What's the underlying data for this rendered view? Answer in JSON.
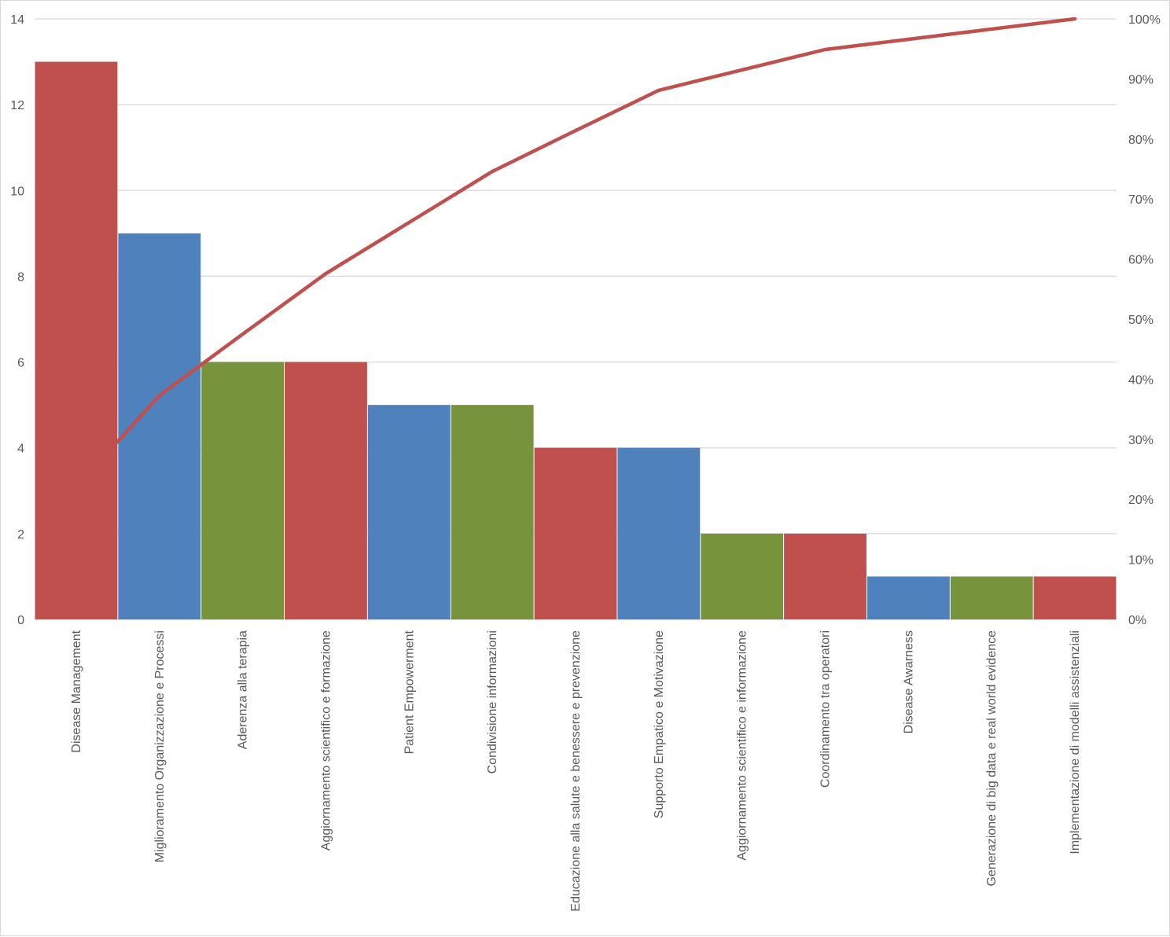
{
  "chart_data": {
    "type": "bar",
    "subtype": "pareto",
    "title": "",
    "xlabel": "",
    "ylabel": "",
    "ylim": [
      0,
      14
    ],
    "y_ticks": [
      "0",
      "2",
      "4",
      "6",
      "8",
      "10",
      "12",
      "14"
    ],
    "y2lim": [
      0,
      100
    ],
    "y2_ticks": [
      "0%",
      "10%",
      "20%",
      "30%",
      "40%",
      "50%",
      "60%",
      "70%",
      "80%",
      "90%",
      "100%"
    ],
    "grid": true,
    "legend": "none",
    "categories": [
      "Disease Management",
      "Miglioramento Organizzazione e Processi",
      "Aderenza alla terapia",
      "Aggiornamento scientifico e formazione",
      "Patient Empowerment",
      "Condivisione informazioni",
      "Educazione alla salute e benessere e prevenzione",
      "Supporto Empatico e Motivazione",
      "Aggiornamento scientifico e informazione",
      "Coordinamento tra operatori",
      "Disease Awarness",
      "Generazione di big data e real world evidence",
      "Implementazione di modelli assistenziali"
    ],
    "values": [
      13,
      9,
      6,
      6,
      5,
      5,
      4,
      4,
      2,
      2,
      1,
      1,
      1
    ],
    "bar_colors": [
      "#c0504d",
      "#4f81bd",
      "#77933c",
      "#c0504d",
      "#4f81bd",
      "#77933c",
      "#c0504d",
      "#4f81bd",
      "#77933c",
      "#c0504d",
      "#4f81bd",
      "#77933c",
      "#c0504d"
    ],
    "cumulative_percent": [
      22.0,
      37.3,
      47.5,
      57.6,
      66.1,
      74.6,
      81.4,
      88.1,
      91.5,
      94.9,
      96.6,
      98.3,
      100.0
    ],
    "line_color": "#c0504d"
  }
}
